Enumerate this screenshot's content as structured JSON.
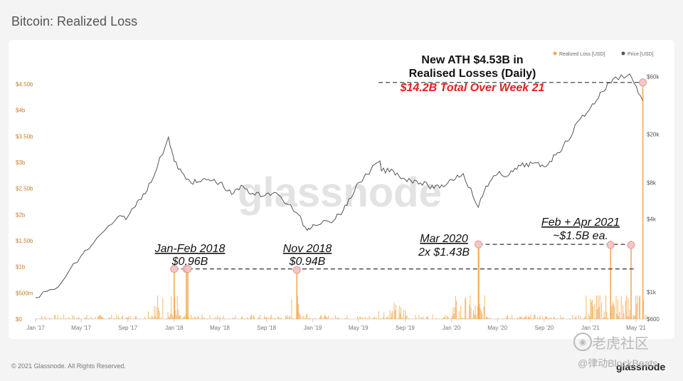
{
  "title": "Bitcoin: Realized Loss",
  "footer": "© 2021 Glassnode. All Rights Reserved.",
  "brand": "glassnode",
  "watermark": "glassnode",
  "overlay": {
    "site_mark": "老虎社区",
    "handle": "@律动BlockBeats",
    "site_icon": "tiger-icon"
  },
  "chart_data": {
    "type": "area",
    "title": "Bitcoin: Realized Loss",
    "legend": [
      {
        "name": "Realized Loss [USD]",
        "color": "#f2a74b"
      },
      {
        "name": "Price [USD]",
        "color": "#555555"
      }
    ],
    "legend_position": "top-right",
    "x_ticks": [
      "Jan '17",
      "May '17",
      "Sep '17",
      "Jan '18",
      "May '18",
      "Sep '18",
      "Jan '19",
      "May '19",
      "Sep '19",
      "Jan '20",
      "May '20",
      "Sep '20",
      "Jan '21",
      "May '21"
    ],
    "left_axis": {
      "label": "Realized Loss [USD]",
      "ylim": [
        0,
        4.8
      ],
      "unit": "billion USD",
      "ticks": [
        {
          "v": 0,
          "t": "$0"
        },
        {
          "v": 0.5,
          "t": "$500m"
        },
        {
          "v": 1,
          "t": "$1b"
        },
        {
          "v": 1.5,
          "t": "$1.50b"
        },
        {
          "v": 2,
          "t": "$2b"
        },
        {
          "v": 2.5,
          "t": "$2.50b"
        },
        {
          "v": 3,
          "t": "$3b"
        },
        {
          "v": 3.5,
          "t": "$3.50b"
        },
        {
          "v": 4,
          "t": "$4b"
        },
        {
          "v": 4.5,
          "t": "$4.50b"
        }
      ]
    },
    "right_axis": {
      "label": "Price [USD]",
      "scale": "log",
      "ticks": [
        {
          "v": 600,
          "t": "$600"
        },
        {
          "v": 1000,
          "t": "$1k"
        },
        {
          "v": 4000,
          "t": "$4k"
        },
        {
          "v": 8000,
          "t": "$8k"
        },
        {
          "v": 20000,
          "t": "$20k"
        },
        {
          "v": 60000,
          "t": "$60k"
        }
      ]
    },
    "price_series": {
      "name": "Price [USD]",
      "x": [
        "2017-01",
        "2017-03",
        "2017-05",
        "2017-06",
        "2017-08",
        "2017-09",
        "2017-10",
        "2017-11",
        "2017-12-17",
        "2018-01",
        "2018-02",
        "2018-03",
        "2018-04",
        "2018-05",
        "2018-06",
        "2018-07",
        "2018-08",
        "2018-09",
        "2018-10",
        "2018-11-20",
        "2018-12-15",
        "2019-01",
        "2019-03",
        "2019-04",
        "2019-05",
        "2019-06-26",
        "2019-07",
        "2019-08",
        "2019-09",
        "2019-10",
        "2019-11",
        "2019-12",
        "2020-01",
        "2020-02",
        "2020-03-12",
        "2020-04",
        "2020-05",
        "2020-06",
        "2020-07",
        "2020-08",
        "2020-09",
        "2020-10",
        "2020-11",
        "2020-12",
        "2021-01",
        "2021-02",
        "2021-03",
        "2021-04-14",
        "2021-05-19"
      ],
      "values": [
        900,
        1100,
        2000,
        2500,
        4000,
        4200,
        5800,
        8000,
        19000,
        12000,
        8500,
        8000,
        8500,
        8000,
        6400,
        7500,
        6300,
        6500,
        6400,
        4500,
        3300,
        3600,
        4000,
        5200,
        8000,
        12000,
        10000,
        10000,
        8500,
        8300,
        7500,
        7200,
        8500,
        9500,
        5000,
        7500,
        9400,
        9300,
        11000,
        11500,
        10800,
        13500,
        17500,
        26000,
        33000,
        45000,
        57000,
        63000,
        38000
      ]
    },
    "loss_series": {
      "name": "Realized Loss [USD]",
      "x": [
        "2018-01",
        "2018-02-02",
        "2018-02-06",
        "2018-11-20",
        "2020-03-12",
        "2020-03-13",
        "2021-02-23",
        "2021-04-18",
        "2021-05-19"
      ],
      "values": [
        0.96,
        0.96,
        0.96,
        0.94,
        1.43,
        1.43,
        1.5,
        1.5,
        4.53
      ],
      "baseline_note": "daily losses mostly below $0.3b"
    },
    "annotations": [
      {
        "text": "Jan-Feb 2018",
        "sub": "$0.96B",
        "value": 0.96
      },
      {
        "text": "Nov 2018",
        "sub": "$0.94B",
        "value": 0.94
      },
      {
        "text": "Mar 2020",
        "sub": "2x $1.43B",
        "value": 1.43
      },
      {
        "text": "Feb + Apr 2021",
        "sub": "~$1.5B ea.",
        "value": 1.5
      },
      {
        "line1": "New ATH $4.53B in",
        "line2": "Realised Losses (Daily)",
        "line3": "$14.2B Total Over Week 21",
        "value": 4.53
      }
    ]
  }
}
